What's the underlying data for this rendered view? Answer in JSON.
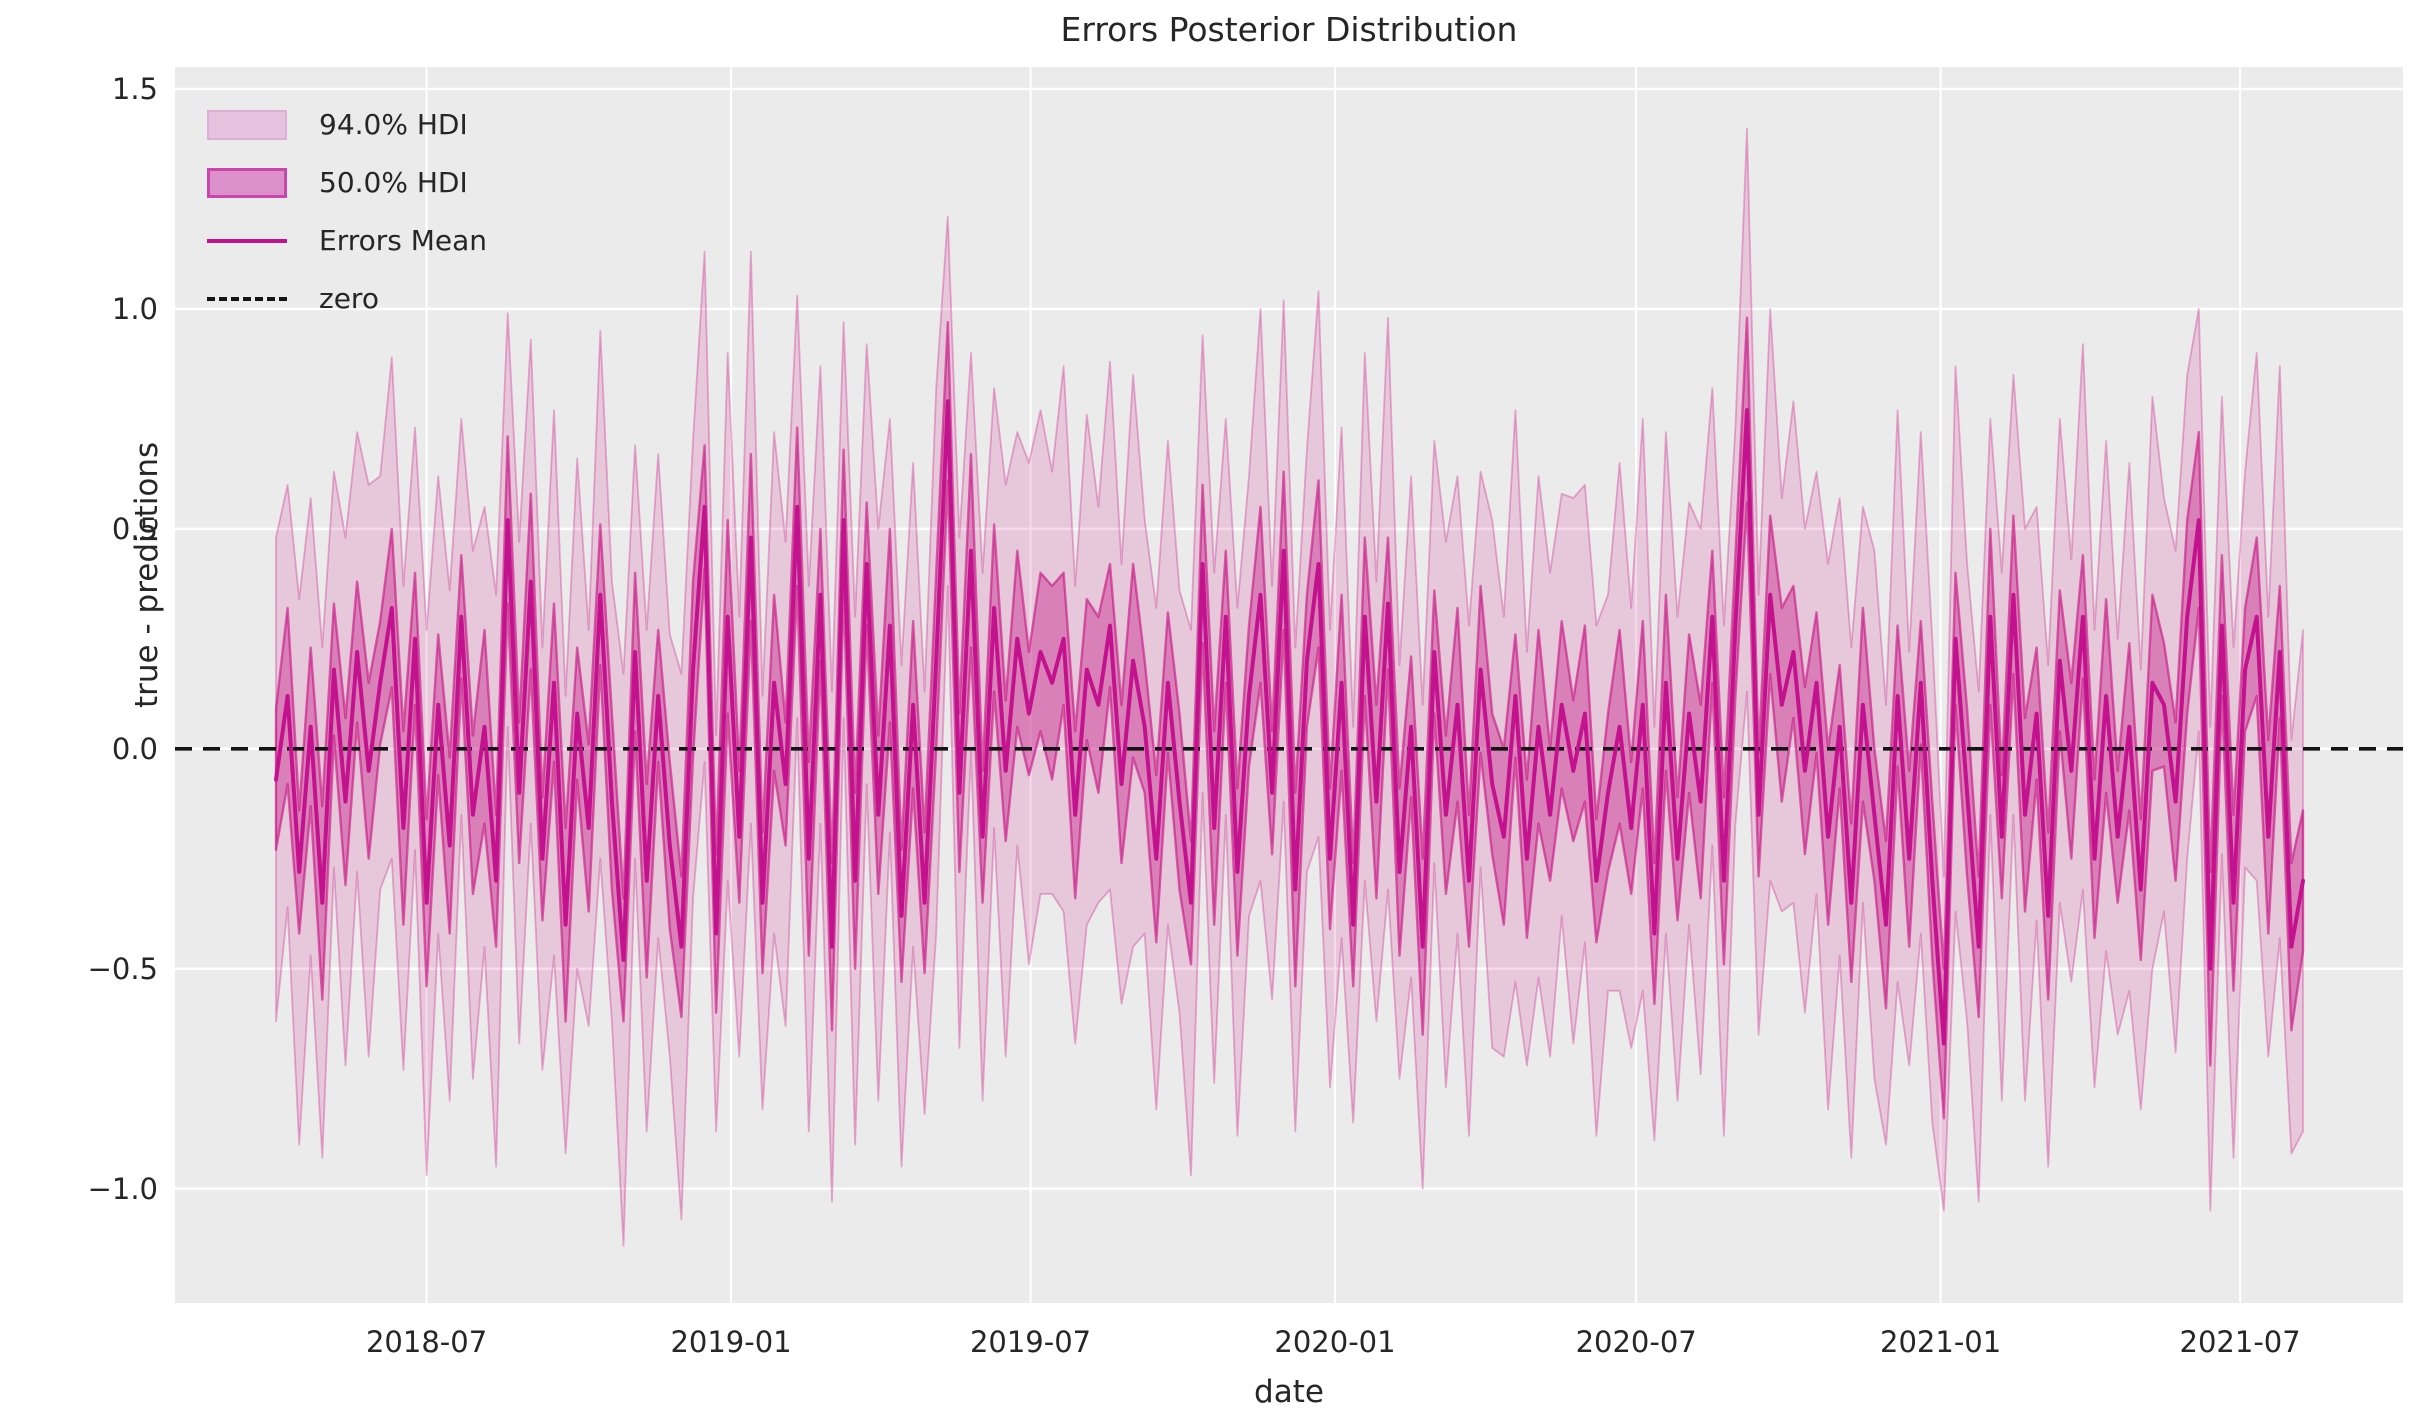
{
  "figure": {
    "title": "Errors Posterior Distribution"
  },
  "axes": {
    "x_label": "date",
    "y_label": "true - predictions",
    "x_ticks": {
      "labels": [
        "2018-07",
        "2019-01",
        "2019-07",
        "2020-01",
        "2020-07",
        "2021-01",
        "2021-07"
      ],
      "day_offsets_from_start": [
        91,
        275,
        456,
        640,
        822,
        1006,
        1187
      ]
    },
    "y_ticks": {
      "labels": [
        "1.5",
        "1.0",
        "0.5",
        "0.0",
        "−0.5",
        "−1.0"
      ],
      "values": [
        1.5,
        1.0,
        0.5,
        0.0,
        -0.5,
        -1.0
      ]
    }
  },
  "legend": {
    "items": [
      {
        "label": "94.0% HDI",
        "type": "patch94"
      },
      {
        "label": "50.0% HDI",
        "type": "patch50"
      },
      {
        "label": "Errors Mean",
        "type": "line"
      },
      {
        "label": "zero",
        "type": "dashed"
      }
    ]
  },
  "colors": {
    "plot_bg": "#ECEBEB",
    "grid": "#FFFFFF",
    "hdi94_fill": "rgba(199,21,133,0.16)",
    "hdi94_edge": "rgba(199,21,133,0.32)",
    "hdi50_fill": "rgba(199,21,133,0.40)",
    "hdi50_edge": "rgba(199,21,133,0.62)",
    "mean_line": "#C2128E",
    "zero_line": "#141414",
    "text": "#262626",
    "legend_patch94": "#E6C4DF",
    "legend_patch50": "#DC90CA"
  },
  "chart_data": {
    "type": "line",
    "title": "Errors Posterior Distribution",
    "xlabel": "date",
    "ylabel": "true - predictions",
    "x_start_date": "2018-04-01",
    "x_end_date": "2021-08-08",
    "x_freq_days": 7,
    "ylim": [
      -1.26,
      1.55
    ],
    "zero_reference": 0.0,
    "legend": [
      "94.0% HDI",
      "50.0% HDI",
      "Errors Mean",
      "zero"
    ],
    "grid": true,
    "mean": [
      -0.07,
      0.12,
      -0.28,
      0.05,
      -0.35,
      0.18,
      -0.12,
      0.22,
      -0.05,
      0.15,
      0.32,
      -0.18,
      0.25,
      -0.35,
      0.1,
      -0.22,
      0.3,
      -0.15,
      0.05,
      -0.3,
      0.52,
      -0.1,
      0.38,
      -0.25,
      0.15,
      -0.4,
      0.08,
      -0.18,
      0.35,
      -0.12,
      -0.48,
      0.22,
      -0.3,
      0.12,
      -0.22,
      -0.45,
      0.18,
      0.55,
      -0.42,
      0.3,
      -0.2,
      0.48,
      -0.35,
      0.15,
      -0.08,
      0.55,
      -0.25,
      0.35,
      -0.45,
      0.52,
      -0.3,
      0.42,
      -0.15,
      0.28,
      -0.38,
      0.1,
      -0.35,
      0.2,
      0.79,
      -0.1,
      0.45,
      -0.2,
      0.32,
      -0.05,
      0.25,
      0.08,
      0.22,
      0.15,
      0.25,
      -0.15,
      0.18,
      0.1,
      0.28,
      -0.08,
      0.2,
      0.05,
      -0.25,
      0.15,
      -0.12,
      -0.35,
      0.42,
      -0.18,
      0.3,
      -0.28,
      0.12,
      0.35,
      -0.1,
      0.45,
      -0.32,
      0.2,
      0.42,
      -0.25,
      0.15,
      -0.4,
      0.3,
      -0.12,
      0.33,
      -0.28,
      0.05,
      -0.45,
      0.22,
      -0.15,
      0.1,
      -0.3,
      0.18,
      -0.08,
      -0.2,
      0.12,
      -0.25,
      0.05,
      -0.15,
      0.1,
      -0.05,
      0.08,
      -0.3,
      -0.1,
      0.05,
      -0.18,
      0.1,
      -0.42,
      0.15,
      -0.25,
      0.08,
      -0.12,
      0.3,
      -0.3,
      0.28,
      0.77,
      -0.15,
      0.35,
      0.1,
      0.22,
      -0.05,
      0.15,
      -0.2,
      0.05,
      -0.35,
      0.1,
      -0.15,
      -0.4,
      0.12,
      -0.25,
      0.15,
      -0.3,
      -0.67,
      0.25,
      -0.1,
      -0.45,
      0.3,
      -0.2,
      0.35,
      -0.15,
      0.08,
      -0.38,
      0.2,
      -0.05,
      0.3,
      -0.25,
      0.12,
      -0.2,
      0.05,
      -0.32,
      0.15,
      0.1,
      -0.12,
      0.3,
      0.52,
      -0.5,
      0.28,
      -0.35,
      0.18,
      0.3,
      -0.2,
      0.22,
      -0.45,
      -0.3
    ],
    "hdi50_halfwidth_pattern": [
      0.16,
      0.2,
      0.14,
      0.18,
      0.22,
      0.15,
      0.19
    ],
    "hdi94_halfwidth_pattern": [
      0.55,
      0.48,
      0.62,
      0.52,
      0.58,
      0.45,
      0.6,
      0.5,
      0.65,
      0.47,
      0.57
    ],
    "halfwidth_overrides": {
      "58": [
        0.18,
        0.42
      ],
      "127": [
        0.21,
        0.64
      ],
      "144": [
        0.17,
        0.38
      ],
      "166": [
        0.2,
        0.48
      ],
      "167": [
        0.22,
        0.55
      ]
    }
  }
}
